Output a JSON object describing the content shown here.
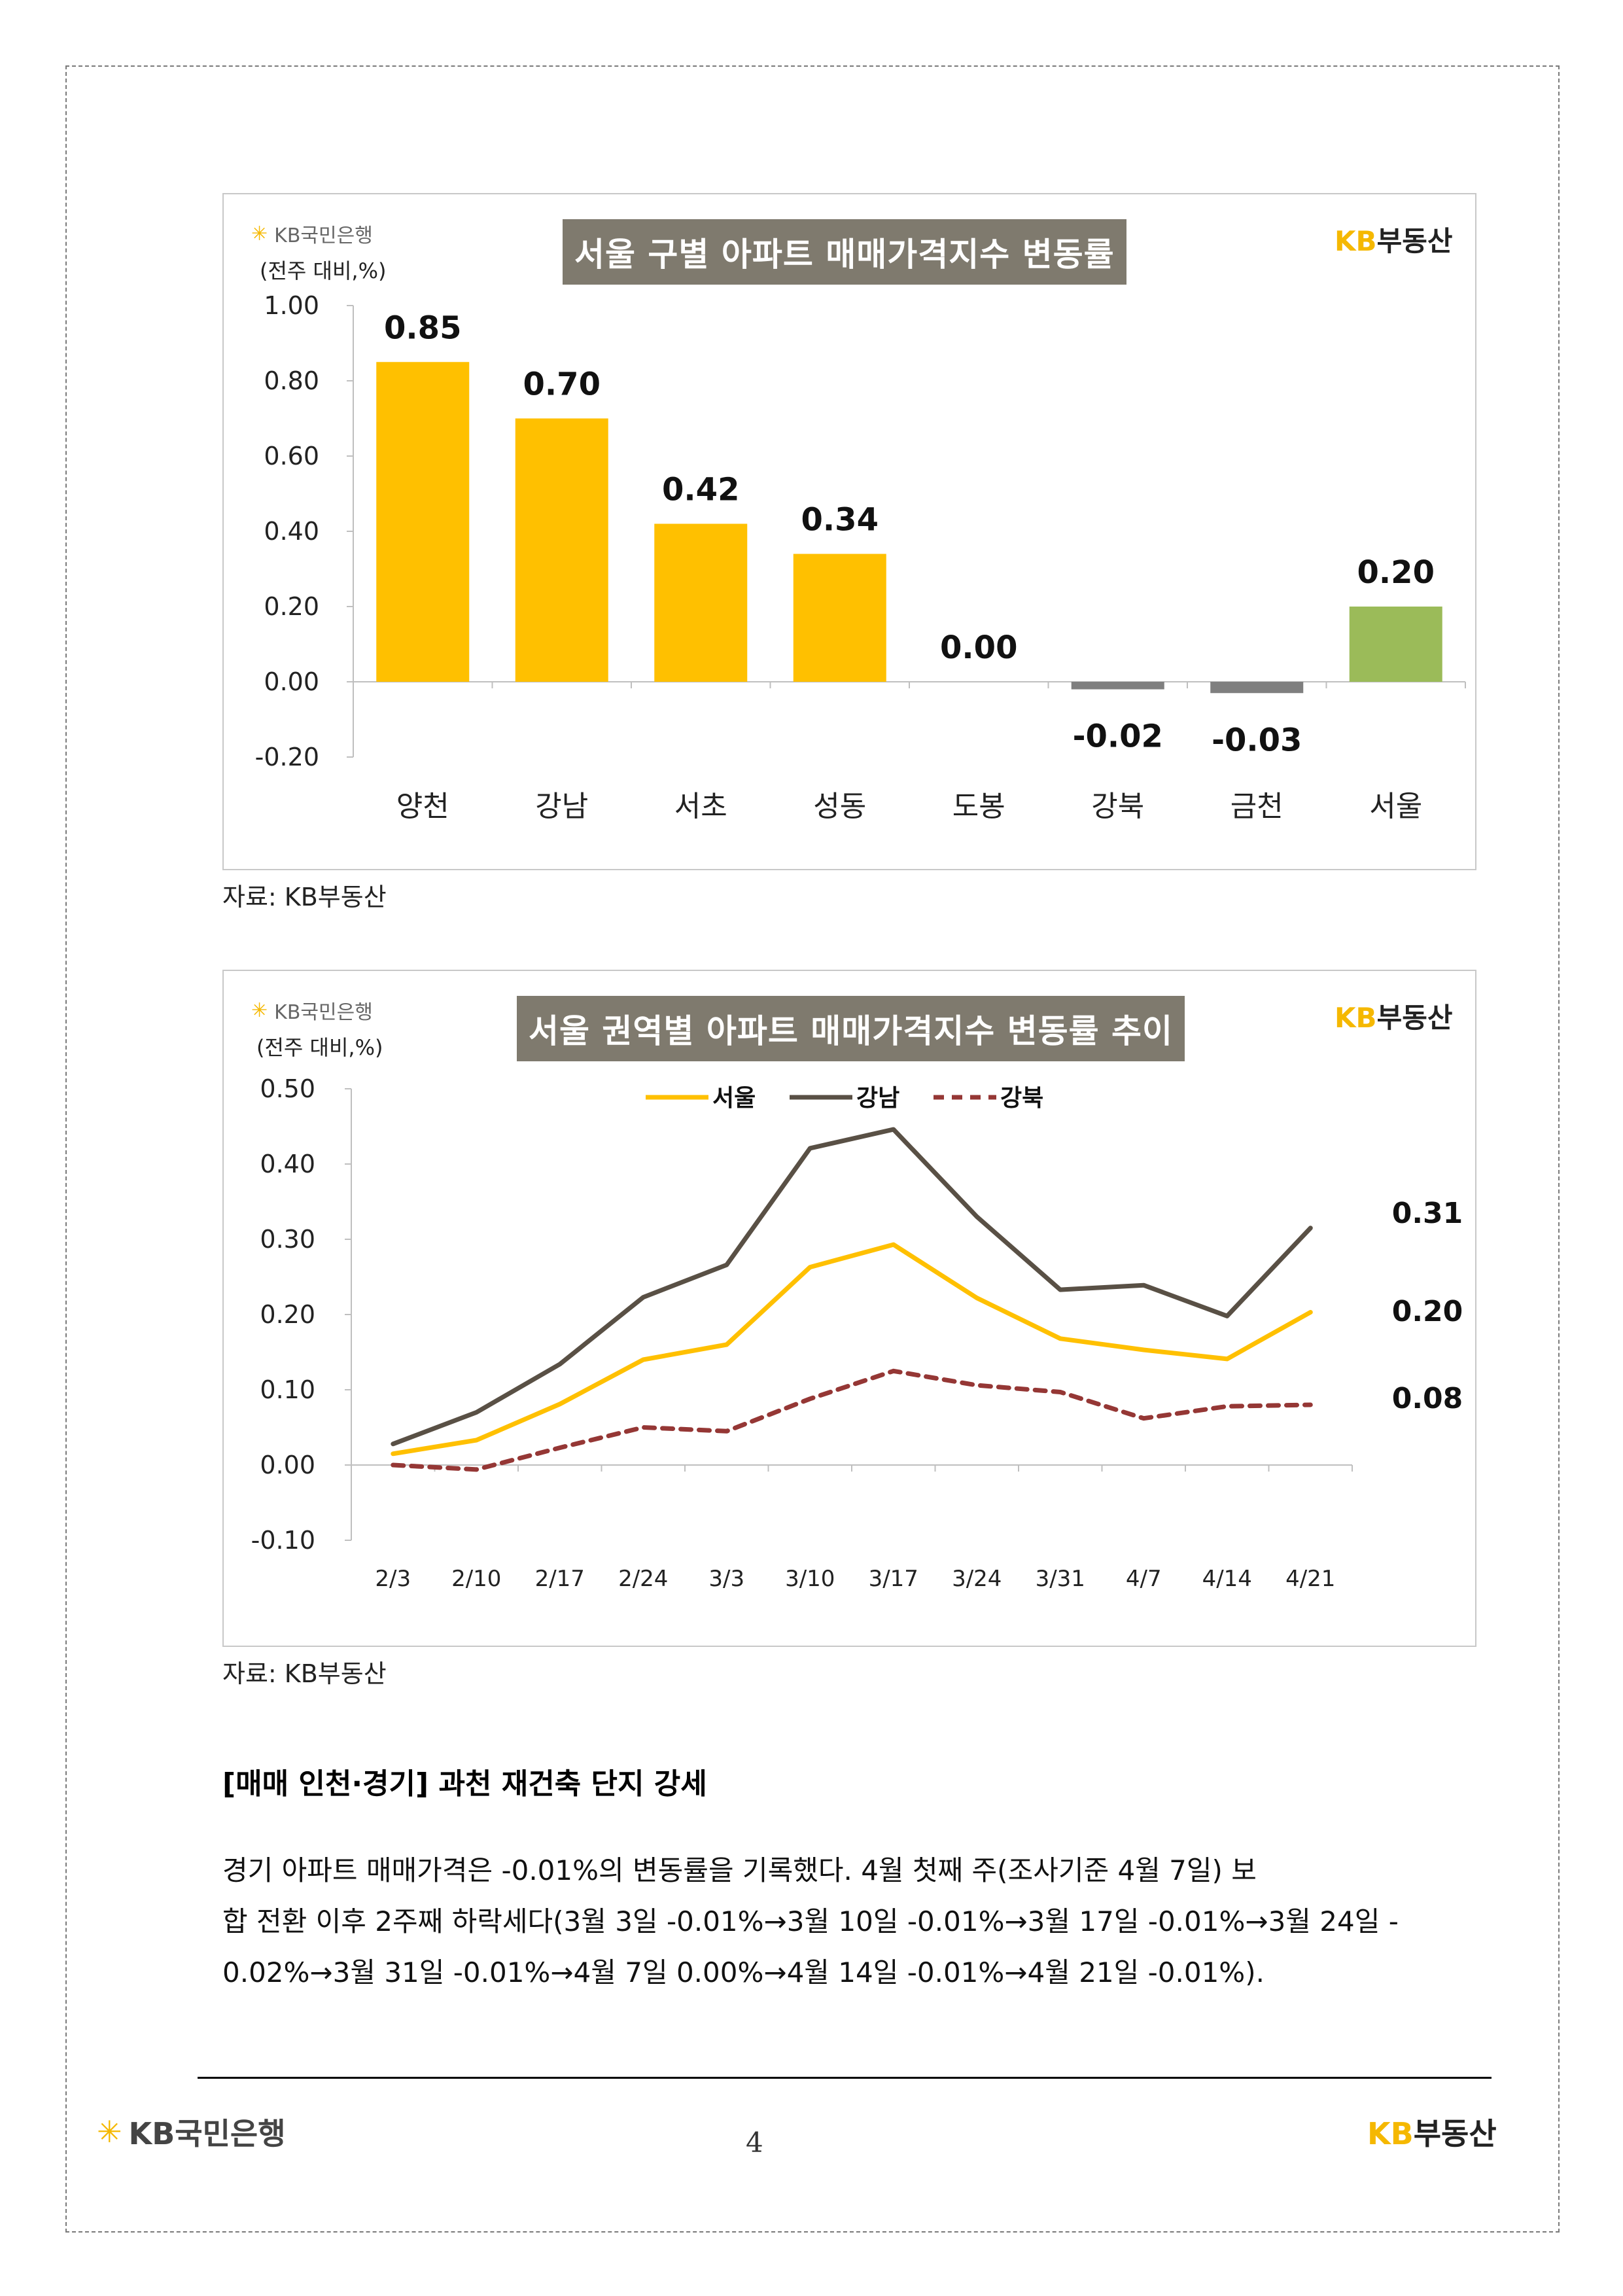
{
  "logos": {
    "kb_bank": "KB국민은행",
    "kb_realestate_kb": "KB",
    "kb_realestate_text": "부동산"
  },
  "colors": {
    "gold": "#FFC000",
    "grey_bar": "#7F7F7F",
    "green_bar": "#9BBB59",
    "seoul_line": "#FFC000",
    "gangnam_line": "#595045",
    "gangbuk_line": "#953735",
    "title_badge": "#7F7A6E"
  },
  "chart1": {
    "unit": "(전주 대비,%)",
    "title": "서울 구별 아파트 매매가격지수 변동률",
    "source": "자료: KB부동산",
    "y_ticks": [
      "1.00",
      "0.80",
      "0.60",
      "0.40",
      "0.20",
      "0.00",
      "-0.20"
    ]
  },
  "chart2": {
    "unit": "(전주 대비,%)",
    "title": "서울 권역별 아파트 매매가격지수 변동률 추이",
    "source": "자료: KB부동산",
    "y_ticks": [
      "0.50",
      "0.40",
      "0.30",
      "0.20",
      "0.10",
      "0.00",
      "-0.10"
    ],
    "end_labels": [
      "0.31",
      "0.20",
      "0.08"
    ]
  },
  "chart_data": [
    {
      "type": "bar",
      "title": "서울 구별 아파트 매매가격지수 변동률",
      "ylabel": "(전주 대비,%)",
      "categories": [
        "양천",
        "강남",
        "서초",
        "성동",
        "도봉",
        "강북",
        "금천",
        "서울"
      ],
      "values": [
        0.85,
        0.7,
        0.42,
        0.34,
        0.0,
        -0.02,
        -0.03,
        0.2
      ],
      "value_labels": [
        "0.85",
        "0.70",
        "0.42",
        "0.34",
        "0.00",
        "-0.02",
        "-0.03",
        "0.20"
      ],
      "ylim": [
        -0.2,
        1.0
      ],
      "bar_colors": [
        "gold",
        "gold",
        "gold",
        "gold",
        "gold",
        "grey_bar",
        "grey_bar",
        "green_bar"
      ]
    },
    {
      "type": "line",
      "title": "서울 권역별 아파트 매매가격지수 변동률 추이",
      "ylabel": "(전주 대비,%)",
      "x": [
        "2/3",
        "2/10",
        "2/17",
        "2/24",
        "3/3",
        "3/10",
        "3/17",
        "3/24",
        "3/31",
        "4/7",
        "4/14",
        "4/21"
      ],
      "ylim": [
        -0.1,
        0.5
      ],
      "legend": "top-center",
      "series": [
        {
          "name": "서울",
          "color": "seoul_line",
          "dash": false,
          "values": [
            0.015,
            0.033,
            0.081,
            0.14,
            0.16,
            0.263,
            0.293,
            0.222,
            0.168,
            0.153,
            0.141,
            0.203
          ]
        },
        {
          "name": "강남",
          "color": "gangnam_line",
          "dash": false,
          "values": [
            0.028,
            0.07,
            0.134,
            0.223,
            0.266,
            0.421,
            0.446,
            0.33,
            0.233,
            0.239,
            0.198,
            0.315
          ]
        },
        {
          "name": "강북",
          "color": "gangbuk_line",
          "dash": true,
          "values": [
            0.0,
            -0.006,
            0.023,
            0.05,
            0.045,
            0.088,
            0.125,
            0.106,
            0.097,
            0.062,
            0.078,
            0.08
          ]
        }
      ]
    }
  ],
  "section": {
    "heading": "[매매 인천·경기] 과천 재건축 단지 강세",
    "paragraph_line1": "경기 아파트 매매가격은 -0.01%의 변동률을 기록했다. 4월 첫째 주(조사기준 4월 7일) 보",
    "paragraph_line2": "합 전환 이후 2주째 하락세다(3월 3일 -0.01%→3월 10일 -0.01%→3월 17일 -0.01%→3월 24일 -",
    "paragraph_line3": "0.02%→3월 31일 -0.01%→4월 7일 0.00%→4월 14일 -0.01%→4월 21일 -0.01%)."
  },
  "footer": {
    "page_number": "4"
  }
}
